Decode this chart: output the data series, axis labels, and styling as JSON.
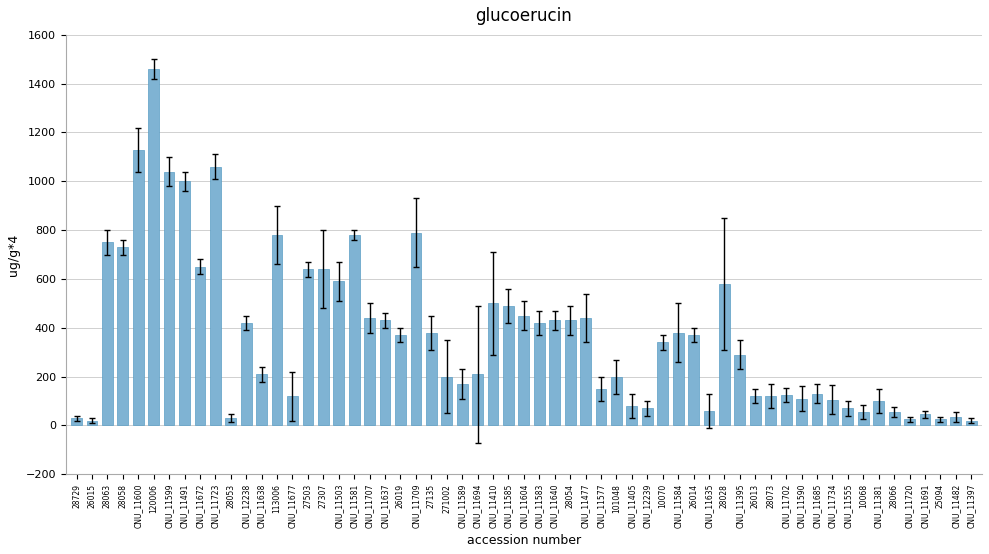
{
  "title": "glucoerucin",
  "xlabel": "accession number",
  "ylabel": "ug/g*4",
  "ylim": [
    -200,
    1600
  ],
  "yticks": [
    -200,
    0,
    200,
    400,
    600,
    800,
    1000,
    1200,
    1400,
    1600
  ],
  "bar_color": "#7fb3d3",
  "bar_edge_color": "#5a9ec5",
  "error_color": "black",
  "categories": [
    "28729",
    "26015",
    "28063",
    "28058",
    "CNU_11600",
    "120006",
    "CNU_11599",
    "CNU_11491",
    "CNU_11672",
    "CNU_11723",
    "28053",
    "CNU_12238",
    "CNU_11638",
    "113006",
    "CNU_11677",
    "27503",
    "27307",
    "CNU_11503",
    "CNU_11581",
    "CNU_11707",
    "CNU_11637",
    "26019",
    "CNU_11709",
    "27135",
    "271002",
    "CNU_11589",
    "CNU_11694",
    "CNU_11410",
    "CNU_11585",
    "CNU_11604",
    "CNU_11583",
    "CNU_11640",
    "28054",
    "CNU_11477",
    "CNU_11577",
    "101048",
    "CNU_11405",
    "CNU_12239",
    "10070",
    "CNU_11584",
    "26014",
    "CNU_11635",
    "28028",
    "CNU_11395",
    "26013",
    "28073",
    "CNU_11702",
    "CNU_11590",
    "CNU_11685",
    "CNU_11734",
    "CNU_11555",
    "10068",
    "CNU_11381",
    "28066",
    "CNU_11720",
    "CNU_11691",
    "25094",
    "CNU_11482",
    "CNU_11397"
  ],
  "values": [
    30,
    20,
    750,
    730,
    1130,
    1460,
    1040,
    1000,
    650,
    1060,
    30,
    420,
    210,
    780,
    120,
    640,
    640,
    590,
    780,
    440,
    430,
    370,
    790,
    380,
    200,
    170,
    210,
    500,
    490,
    450,
    420,
    430,
    430,
    440,
    150,
    200,
    80,
    70,
    340,
    380,
    370,
    60,
    580,
    290,
    120,
    120,
    125,
    110,
    130,
    105,
    70,
    55,
    100,
    55,
    25,
    45,
    25,
    35,
    20
  ],
  "errors": [
    10,
    10,
    50,
    30,
    90,
    40,
    60,
    40,
    30,
    50,
    15,
    30,
    30,
    120,
    100,
    30,
    160,
    80,
    20,
    60,
    30,
    30,
    140,
    70,
    150,
    60,
    280,
    210,
    70,
    60,
    50,
    40,
    60,
    100,
    50,
    70,
    50,
    30,
    30,
    120,
    30,
    70,
    270,
    60,
    30,
    50,
    30,
    50,
    40,
    60,
    30,
    30,
    50,
    20,
    10,
    15,
    10,
    20,
    10
  ]
}
